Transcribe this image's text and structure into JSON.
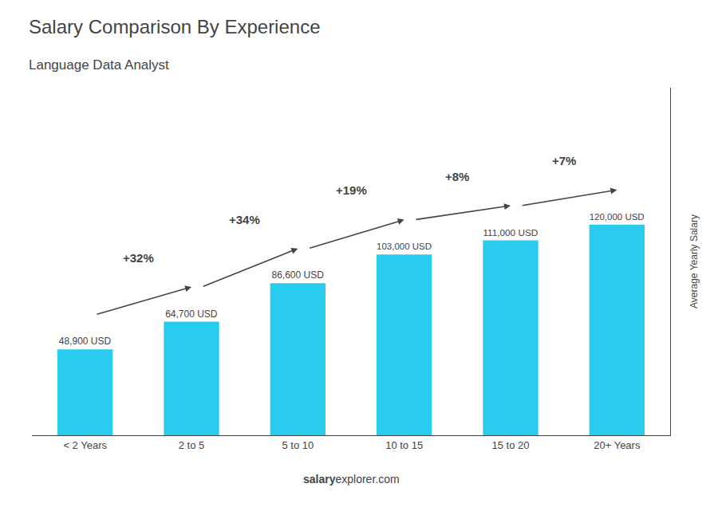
{
  "chart_data": {
    "type": "bar",
    "title": "Salary Comparison By Experience",
    "subtitle": "Language Data Analyst",
    "ylabel": "Average Yearly Salary",
    "categories": [
      "< 2 Years",
      "2 to 5",
      "5 to 10",
      "10 to 15",
      "15 to 20",
      "20+ Years"
    ],
    "values": [
      48900,
      64700,
      86600,
      103000,
      111000,
      120000
    ],
    "value_labels": [
      "48,900 USD",
      "64,700 USD",
      "86,600 USD",
      "103,000 USD",
      "111,000 USD",
      "120,000 USD"
    ],
    "data_labels": true,
    "annotations": [
      "+32%",
      "+34%",
      "+19%",
      "+8%",
      "+7%"
    ],
    "footer": [
      "salary",
      "explorer.com"
    ],
    "color": "#29ccee",
    "ylim": [
      0,
      198000
    ],
    "grid": false,
    "tick_labels": "x"
  }
}
